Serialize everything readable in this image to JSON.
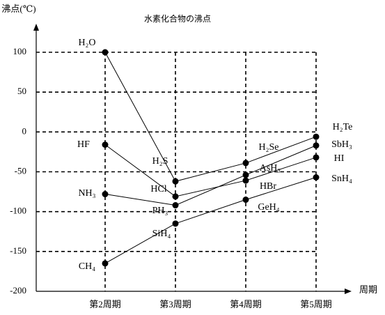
{
  "chart_data": {
    "type": "line",
    "title": "水素化合物の沸点",
    "y_label": "沸点(℃)",
    "x_label": "周期",
    "categories": [
      "第2周期",
      "第3周期",
      "第4周期",
      "第5周期"
    ],
    "ylim": [
      -200,
      100
    ],
    "yticks": [
      100,
      50,
      0,
      -50,
      -100,
      -150,
      -200
    ],
    "grid": true,
    "series": [
      {
        "color": "#000000",
        "values": [
          -165,
          -115,
          -85,
          -57
        ],
        "labels": [
          "CH₄",
          "SiH₄",
          "GeH₄",
          "SnH₄"
        ]
      },
      {
        "color": "#000000",
        "values": [
          -78,
          -92,
          -54,
          -17
        ],
        "labels": [
          "NH₃",
          "PH₃",
          "AsH₃",
          "SbH₃"
        ]
      },
      {
        "color": "#000000",
        "values": [
          100,
          -62,
          -39,
          -6
        ],
        "labels": [
          "H₂O",
          "H₂S",
          "H₂Se",
          "H₂Te"
        ]
      },
      {
        "color": "#000000",
        "values": [
          -16,
          -81,
          -61,
          -32
        ],
        "labels": [
          "HF",
          "HCl",
          "HBr",
          "HI"
        ]
      }
    ]
  }
}
